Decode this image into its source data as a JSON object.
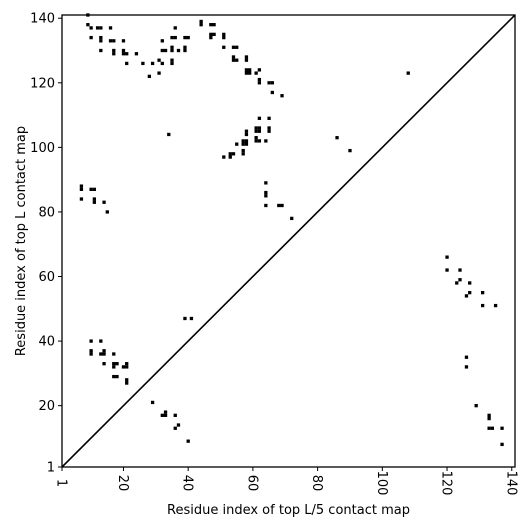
{
  "chart_data": {
    "type": "scatter",
    "xlabel": "Residue index of top L/5 contact map",
    "ylabel": "Residue index of top L contact map",
    "xlim": [
      1,
      141
    ],
    "ylim": [
      1,
      141
    ],
    "x_ticks": [
      1,
      20,
      40,
      60,
      80,
      100,
      120,
      140
    ],
    "y_ticks": [
      1,
      20,
      40,
      60,
      80,
      100,
      120,
      140
    ],
    "x_tick_labels": [
      "1",
      "20",
      "40",
      "60",
      "80",
      "100",
      "120",
      "140"
    ],
    "y_tick_labels": [
      "1",
      "20",
      "40",
      "60",
      "80",
      "100",
      "120",
      "140"
    ],
    "diagonal": true,
    "grid": false,
    "series": [
      {
        "marker": "square",
        "color": "#000000",
        "points": [
          [
            9,
            141
          ],
          [
            9,
            138
          ],
          [
            10,
            137
          ],
          [
            12,
            137
          ],
          [
            13,
            137
          ],
          [
            16,
            137
          ],
          [
            10,
            134
          ],
          [
            13,
            134
          ],
          [
            13,
            133
          ],
          [
            16,
            133
          ],
          [
            17,
            133
          ],
          [
            20,
            133
          ],
          [
            13,
            130
          ],
          [
            17,
            130
          ],
          [
            17,
            129
          ],
          [
            20,
            130
          ],
          [
            20,
            129
          ],
          [
            21,
            129
          ],
          [
            24,
            129
          ],
          [
            21,
            126
          ],
          [
            26,
            126
          ],
          [
            29,
            126
          ],
          [
            31,
            127
          ],
          [
            32,
            126
          ],
          [
            32,
            130
          ],
          [
            33,
            130
          ],
          [
            32,
            133
          ],
          [
            35,
            134
          ],
          [
            36,
            134
          ],
          [
            36,
            137
          ],
          [
            35,
            131
          ],
          [
            35,
            130
          ],
          [
            37,
            130
          ],
          [
            35,
            127
          ],
          [
            35,
            126
          ],
          [
            39,
            134
          ],
          [
            40,
            134
          ],
          [
            39,
            131
          ],
          [
            39,
            130
          ],
          [
            31,
            123
          ],
          [
            28,
            122
          ],
          [
            44,
            139
          ],
          [
            44,
            138
          ],
          [
            47,
            138
          ],
          [
            48,
            138
          ],
          [
            47,
            135
          ],
          [
            48,
            135
          ],
          [
            47,
            134
          ],
          [
            51,
            134
          ],
          [
            51,
            135
          ],
          [
            51,
            131
          ],
          [
            54,
            131
          ],
          [
            55,
            131
          ],
          [
            54,
            128
          ],
          [
            54,
            127
          ],
          [
            55,
            127
          ],
          [
            58,
            128
          ],
          [
            58,
            127
          ],
          [
            58,
            124
          ],
          [
            58,
            123
          ],
          [
            59,
            124
          ],
          [
            59,
            123
          ],
          [
            61,
            123
          ],
          [
            62,
            124
          ],
          [
            62,
            121
          ],
          [
            62,
            120
          ],
          [
            65,
            120
          ],
          [
            66,
            120
          ],
          [
            66,
            117
          ],
          [
            69,
            116
          ],
          [
            108,
            123
          ],
          [
            34,
            104
          ],
          [
            58,
            105
          ],
          [
            58,
            104
          ],
          [
            62,
            106
          ],
          [
            61,
            105
          ],
          [
            61,
            106
          ],
          [
            62,
            105
          ],
          [
            65,
            105
          ],
          [
            65,
            106
          ],
          [
            62,
            109
          ],
          [
            65,
            109
          ],
          [
            57,
            102
          ],
          [
            58,
            102
          ],
          [
            57,
            101
          ],
          [
            58,
            101
          ],
          [
            61,
            102
          ],
          [
            62,
            102
          ],
          [
            61,
            103
          ],
          [
            64,
            102
          ],
          [
            55,
            101
          ],
          [
            54,
            98
          ],
          [
            53,
            98
          ],
          [
            53,
            97
          ],
          [
            51,
            97
          ],
          [
            57,
            99
          ],
          [
            57,
            98
          ],
          [
            86,
            103
          ],
          [
            90,
            99
          ],
          [
            7,
            88
          ],
          [
            7,
            87
          ],
          [
            10,
            87
          ],
          [
            11,
            87
          ],
          [
            11,
            84
          ],
          [
            11,
            83
          ],
          [
            7,
            84
          ],
          [
            14,
            83
          ],
          [
            15,
            80
          ],
          [
            64,
            89
          ],
          [
            64,
            86
          ],
          [
            64,
            85
          ],
          [
            64,
            82
          ],
          [
            68,
            82
          ],
          [
            69,
            82
          ],
          [
            72,
            78
          ],
          [
            120,
            66
          ],
          [
            120,
            62
          ],
          [
            124,
            62
          ],
          [
            124,
            59
          ],
          [
            123,
            58
          ],
          [
            127,
            58
          ],
          [
            127,
            55
          ],
          [
            126,
            54
          ],
          [
            131,
            55
          ],
          [
            131,
            51
          ],
          [
            135,
            51
          ],
          [
            39,
            47
          ],
          [
            41,
            47
          ],
          [
            10,
            40
          ],
          [
            13,
            40
          ],
          [
            10,
            37
          ],
          [
            10,
            36
          ],
          [
            13,
            36
          ],
          [
            14,
            36
          ],
          [
            14,
            37
          ],
          [
            17,
            36
          ],
          [
            14,
            33
          ],
          [
            17,
            33
          ],
          [
            17,
            32
          ],
          [
            18,
            33
          ],
          [
            20,
            32
          ],
          [
            21,
            32
          ],
          [
            21,
            33
          ],
          [
            17,
            29
          ],
          [
            18,
            29
          ],
          [
            21,
            28
          ],
          [
            21,
            27
          ],
          [
            29,
            21
          ],
          [
            32,
            17
          ],
          [
            33,
            17
          ],
          [
            33,
            18
          ],
          [
            36,
            17
          ],
          [
            36,
            13
          ],
          [
            37,
            14
          ],
          [
            40,
            9
          ],
          [
            126,
            35
          ],
          [
            126,
            32
          ],
          [
            129,
            20
          ],
          [
            133,
            17
          ],
          [
            133,
            16
          ],
          [
            133,
            13
          ],
          [
            134,
            13
          ],
          [
            137,
            13
          ],
          [
            137,
            8
          ]
        ]
      }
    ]
  }
}
